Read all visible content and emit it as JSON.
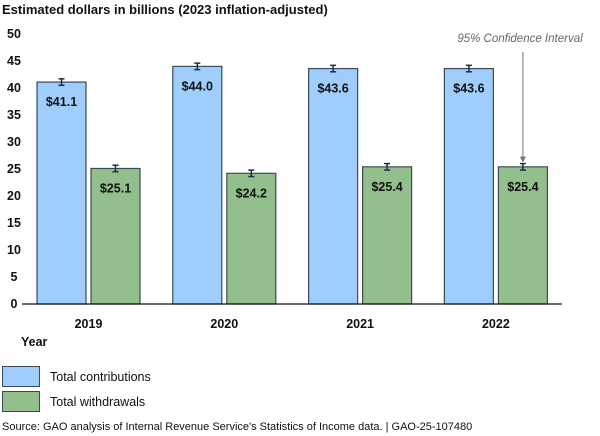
{
  "title": "Estimated dollars in billions (2023 inflation-adjusted)",
  "source": "Source: GAO analysis of Internal Revenue Service's Statistics of Income data.  |  GAO-25-107480",
  "chart_data": {
    "type": "bar",
    "title": "Estimated dollars in billions (2023 inflation-adjusted)",
    "xlabel": "Year",
    "ylabel": "",
    "ylim": [
      0,
      50
    ],
    "yticks": [
      0,
      5,
      10,
      15,
      20,
      25,
      30,
      35,
      40,
      45,
      50
    ],
    "categories": [
      "2019",
      "2020",
      "2021",
      "2022"
    ],
    "series": [
      {
        "name": "Total contributions",
        "color": "#9fcdfc",
        "values": [
          41.1,
          44.0,
          43.6,
          43.6
        ],
        "labels": [
          "$41.1",
          "$44.0",
          "$43.6",
          "$43.6"
        ]
      },
      {
        "name": "Total withdrawals",
        "color": "#93bf8d",
        "values": [
          25.1,
          24.2,
          25.4,
          25.4
        ],
        "labels": [
          "$25.1",
          "$24.2",
          "$25.4",
          "$25.4"
        ]
      }
    ],
    "error_bars": true,
    "annotation": "95% Confidence Interval",
    "grid": false,
    "legend": "bottom-left"
  }
}
